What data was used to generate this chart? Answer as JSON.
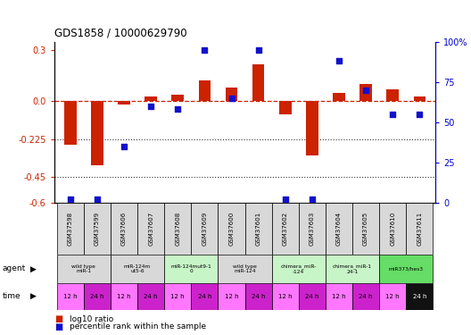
{
  "title": "GDS1858 / 10000629790",
  "samples": [
    "GSM37598",
    "GSM37599",
    "GSM37606",
    "GSM37607",
    "GSM37608",
    "GSM37609",
    "GSM37600",
    "GSM37601",
    "GSM37602",
    "GSM37603",
    "GSM37604",
    "GSM37605",
    "GSM37610",
    "GSM37611"
  ],
  "log10_ratio": [
    -0.26,
    -0.38,
    -0.02,
    0.03,
    0.04,
    0.12,
    0.08,
    0.22,
    -0.08,
    -0.32,
    0.05,
    0.1,
    0.07,
    0.03
  ],
  "percentile_rank": [
    2,
    2,
    35,
    60,
    58,
    95,
    65,
    95,
    2,
    2,
    88,
    70,
    55,
    55
  ],
  "ylim_left": [
    -0.6,
    0.35
  ],
  "ylim_right": [
    0,
    100
  ],
  "left_yticks": [
    -0.6,
    -0.45,
    -0.225,
    0.0,
    0.3
  ],
  "right_yticks": [
    0,
    25,
    50,
    75,
    100
  ],
  "agent_groups": [
    {
      "label": "wild type\nmiR-1",
      "start": 0,
      "end": 2,
      "color": "#d8d8d8"
    },
    {
      "label": "miR-124m\nut5-6",
      "start": 2,
      "end": 4,
      "color": "#d8d8d8"
    },
    {
      "label": "miR-124mut9-1\n0",
      "start": 4,
      "end": 6,
      "color": "#c8f5c8"
    },
    {
      "label": "wild type\nmiR-124",
      "start": 6,
      "end": 8,
      "color": "#d8d8d8"
    },
    {
      "label": "chimera_miR-\n-124",
      "start": 8,
      "end": 10,
      "color": "#c8f5c8"
    },
    {
      "label": "chimera_miR-1\n24-1",
      "start": 10,
      "end": 12,
      "color": "#c8f5c8"
    },
    {
      "label": "miR373/hes3",
      "start": 12,
      "end": 14,
      "color": "#66dd66"
    }
  ],
  "time_colors_alt": [
    "#ff77ff",
    "#cc22cc"
  ],
  "time_last_color": "#111111",
  "time_last_text_color": "#ffffff",
  "bar_color": "#cc2200",
  "dot_color": "#1111cc",
  "zero_line_color": "#cc2200",
  "hline_color": "#333333",
  "sample_row_color": "#d8d8d8",
  "left_label_color": "#cc2200",
  "right_label_color": "#0000cc"
}
